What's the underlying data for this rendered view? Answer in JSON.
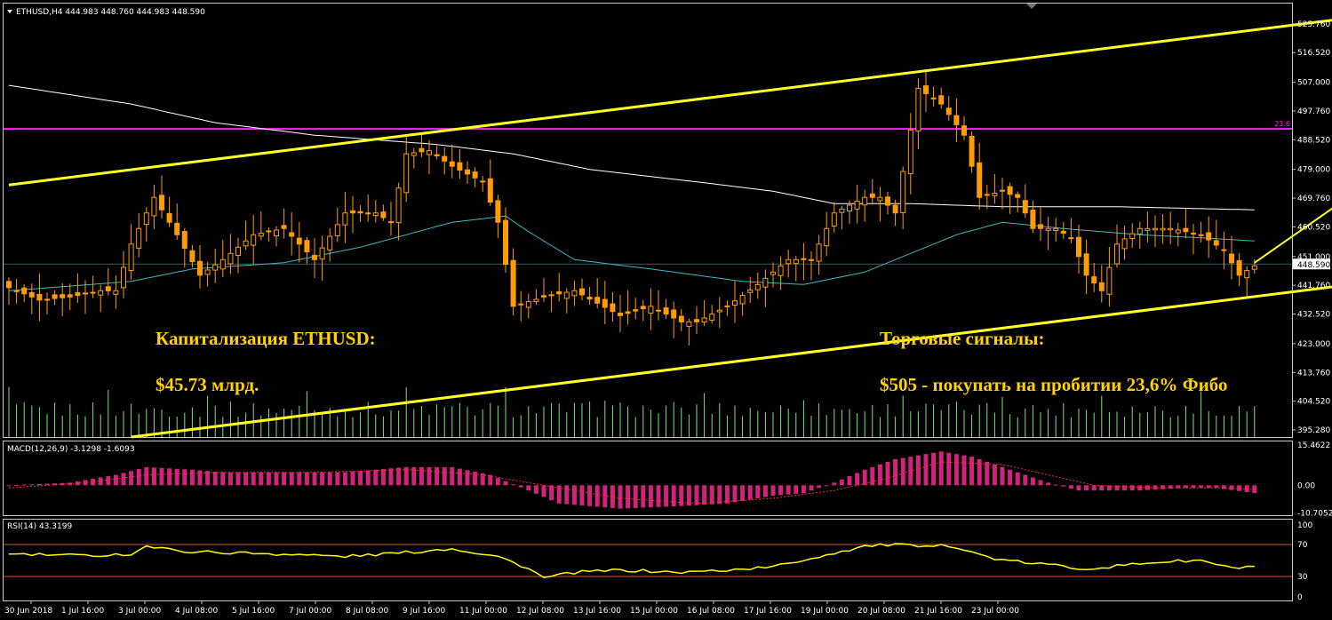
{
  "window": {
    "symbol_header": "ETHUSD,H4  444.983 448.760 444.983 448.590",
    "dropdown_icon": "triangle-down-icon",
    "corner_icon": "chevron-down-icon"
  },
  "colors": {
    "background": "#000000",
    "frame": "#c8c8c8",
    "candle": "#ff9d00",
    "volume": "#7fe07f",
    "ma_slow": "#ffffff",
    "ma_fast": "#3fb8c0",
    "fibo": "#ff22ff",
    "channel": "#ffff22",
    "macd_hist": "#d1237b",
    "macd_signal": "#ff3030",
    "rsi": "#ffff00",
    "rsi_level": "#cc5a3a",
    "annotation": "#ffd200"
  },
  "annotations": {
    "cap_title": "Капитализация ETHUSD:",
    "cap_value": "$45.73 млрд.",
    "signals_title": "Торговые сигналы:",
    "signal_1": "$505 - покупать на пробитии 23,6% Фибо"
  },
  "chart_data": [
    {
      "type": "candlestick",
      "title": "ETHUSD,H4  444.983 448.760 444.983 448.590",
      "ylim": [
        393.0,
        532.0
      ],
      "y_tick_labels": [
        "525.760",
        "516.520",
        "507.000",
        "497.760",
        "488.520",
        "479.000",
        "469.760",
        "460.520",
        "451.000",
        "441.760",
        "432.520",
        "423.000",
        "413.760",
        "404.520",
        "395.280"
      ],
      "y_tick_values": [
        525.76,
        516.52,
        507.0,
        497.76,
        488.52,
        479.0,
        469.76,
        460.52,
        451.0,
        441.76,
        432.52,
        423.0,
        413.76,
        404.52,
        395.28
      ],
      "current_price_label": "448.590",
      "current_price": 448.59,
      "fibo_level": {
        "label": "23.6",
        "price": 492.0
      },
      "x_tick_labels": [
        "30 Jun 2018",
        "1 Jul 16:00",
        "3 Jul 00:00",
        "4 Jul 08:00",
        "5 Jul 16:00",
        "7 Jul 00:00",
        "8 Jul 08:00",
        "9 Jul 16:00",
        "11 Jul 00:00",
        "12 Jul 08:00",
        "13 Jul 16:00",
        "15 Jul 00:00",
        "16 Jul 08:00",
        "17 Jul 16:00",
        "19 Jul 00:00",
        "20 Jul 08:00",
        "21 Jul 16:00",
        "23 Jul 00:00"
      ],
      "anchors": [
        [
          0,
          441
        ],
        [
          4,
          437
        ],
        [
          8,
          438
        ],
        [
          12,
          440
        ],
        [
          14,
          440
        ],
        [
          16,
          455
        ],
        [
          19,
          470
        ],
        [
          22,
          458
        ],
        [
          25,
          445
        ],
        [
          28,
          450
        ],
        [
          32,
          458
        ],
        [
          36,
          460
        ],
        [
          40,
          450
        ],
        [
          44,
          465
        ],
        [
          48,
          465
        ],
        [
          50,
          462
        ],
        [
          52,
          484
        ],
        [
          55,
          485
        ],
        [
          58,
          480
        ],
        [
          62,
          475
        ],
        [
          64,
          462
        ],
        [
          66,
          435
        ],
        [
          70,
          438
        ],
        [
          74,
          440
        ],
        [
          77,
          436
        ],
        [
          80,
          432
        ],
        [
          84,
          435
        ],
        [
          88,
          430
        ],
        [
          90,
          430
        ],
        [
          94,
          435
        ],
        [
          98,
          442
        ],
        [
          102,
          450
        ],
        [
          105,
          450
        ],
        [
          108,
          465
        ],
        [
          112,
          470
        ],
        [
          114,
          470
        ],
        [
          116,
          465
        ],
        [
          119,
          505
        ],
        [
          122,
          500
        ],
        [
          125,
          490
        ],
        [
          127,
          470
        ],
        [
          130,
          472
        ],
        [
          132,
          470
        ],
        [
          134,
          460
        ],
        [
          137,
          460
        ],
        [
          139,
          457
        ],
        [
          141,
          445
        ],
        [
          143,
          440
        ],
        [
          145,
          455
        ],
        [
          148,
          460
        ],
        [
          152,
          460
        ],
        [
          156,
          458
        ],
        [
          159,
          453
        ],
        [
          161,
          445
        ],
        [
          163,
          448
        ]
      ],
      "series": [
        {
          "name": "",
          "kind": "moving-average-slow",
          "points": [
            [
              0,
              506
            ],
            [
              16,
              500
            ],
            [
              27,
              494
            ],
            [
              40,
              490
            ],
            [
              56,
              487
            ],
            [
              66,
              484
            ],
            [
              76,
              479
            ],
            [
              90,
              475
            ],
            [
              100,
              472
            ],
            [
              108,
              468
            ],
            [
              118,
              468
            ],
            [
              130,
              467
            ],
            [
              145,
              467
            ],
            [
              163,
              466
            ]
          ]
        },
        {
          "name": "",
          "kind": "moving-average-fast",
          "points": [
            [
              0,
              440
            ],
            [
              16,
              443
            ],
            [
              24,
              447
            ],
            [
              36,
              449
            ],
            [
              46,
              454
            ],
            [
              52,
              458
            ],
            [
              58,
              462
            ],
            [
              65,
              464
            ],
            [
              68,
              459
            ],
            [
              74,
              450
            ],
            [
              84,
              447
            ],
            [
              96,
              443
            ],
            [
              104,
              442
            ],
            [
              112,
              446
            ],
            [
              118,
              452
            ],
            [
              124,
              458
            ],
            [
              130,
              462
            ],
            [
              138,
              460
            ],
            [
              148,
              458
            ],
            [
              156,
              457
            ],
            [
              163,
              456
            ]
          ]
        }
      ],
      "channel_lines": [
        {
          "start": [
            0,
            474
          ],
          "end": [
            193,
            533
          ]
        },
        {
          "start": [
            16,
            393
          ],
          "end": [
            205,
            451
          ]
        }
      ],
      "arrow": {
        "start": [
          163,
          449
        ],
        "end": [
          195,
          504
        ]
      }
    },
    {
      "type": "histogram",
      "title": "MACD(12,26,9) -3.1298 -1.6093",
      "ylim": [
        -11.5,
        16.5
      ],
      "y_tick_labels": [
        "15.4622",
        "0.00",
        "-10.7052"
      ],
      "y_tick_values": [
        15.4622,
        0,
        -10.7052
      ],
      "macd_anchors": [
        [
          0,
          0
        ],
        [
          8,
          1
        ],
        [
          14,
          4
        ],
        [
          18,
          7
        ],
        [
          24,
          6
        ],
        [
          28,
          5
        ],
        [
          36,
          5
        ],
        [
          44,
          5
        ],
        [
          52,
          7
        ],
        [
          58,
          7
        ],
        [
          63,
          4
        ],
        [
          68,
          -2
        ],
        [
          72,
          -7
        ],
        [
          80,
          -9
        ],
        [
          88,
          -8
        ],
        [
          94,
          -7
        ],
        [
          100,
          -4
        ],
        [
          104,
          -3
        ],
        [
          108,
          1
        ],
        [
          112,
          6
        ],
        [
          116,
          10
        ],
        [
          122,
          13
        ],
        [
          126,
          11
        ],
        [
          130,
          7
        ],
        [
          136,
          1
        ],
        [
          140,
          -2
        ],
        [
          148,
          -2
        ],
        [
          154,
          -1
        ],
        [
          158,
          -1
        ],
        [
          163,
          -3
        ]
      ],
      "signal_anchors": [
        [
          0,
          -1
        ],
        [
          10,
          1
        ],
        [
          18,
          4
        ],
        [
          28,
          5
        ],
        [
          40,
          5
        ],
        [
          52,
          6
        ],
        [
          62,
          4
        ],
        [
          70,
          0
        ],
        [
          80,
          -5
        ],
        [
          90,
          -7
        ],
        [
          100,
          -5
        ],
        [
          108,
          -2
        ],
        [
          114,
          2
        ],
        [
          122,
          9
        ],
        [
          130,
          8
        ],
        [
          136,
          4
        ],
        [
          142,
          0
        ],
        [
          150,
          -1
        ],
        [
          158,
          -1
        ],
        [
          163,
          -1.6
        ]
      ]
    },
    {
      "type": "line",
      "title": "RSI(14) 43.3199",
      "ylim": [
        0,
        100
      ],
      "y_tick_labels": [
        "100",
        "70",
        "30",
        "0"
      ],
      "y_tick_values": [
        100,
        70,
        30,
        0
      ],
      "levels": [
        70,
        30
      ],
      "rsi_anchors": [
        [
          0,
          58
        ],
        [
          10,
          56
        ],
        [
          16,
          58
        ],
        [
          18,
          68
        ],
        [
          22,
          62
        ],
        [
          28,
          60
        ],
        [
          36,
          58
        ],
        [
          44,
          55
        ],
        [
          52,
          60
        ],
        [
          58,
          65
        ],
        [
          64,
          55
        ],
        [
          68,
          40
        ],
        [
          70,
          28
        ],
        [
          74,
          35
        ],
        [
          80,
          38
        ],
        [
          88,
          35
        ],
        [
          94,
          38
        ],
        [
          100,
          42
        ],
        [
          106,
          55
        ],
        [
          112,
          68
        ],
        [
          116,
          70
        ],
        [
          120,
          66
        ],
        [
          122,
          72
        ],
        [
          126,
          60
        ],
        [
          130,
          50
        ],
        [
          136,
          45
        ],
        [
          140,
          40
        ],
        [
          144,
          42
        ],
        [
          150,
          48
        ],
        [
          156,
          50
        ],
        [
          160,
          40
        ],
        [
          163,
          43
        ]
      ]
    }
  ]
}
